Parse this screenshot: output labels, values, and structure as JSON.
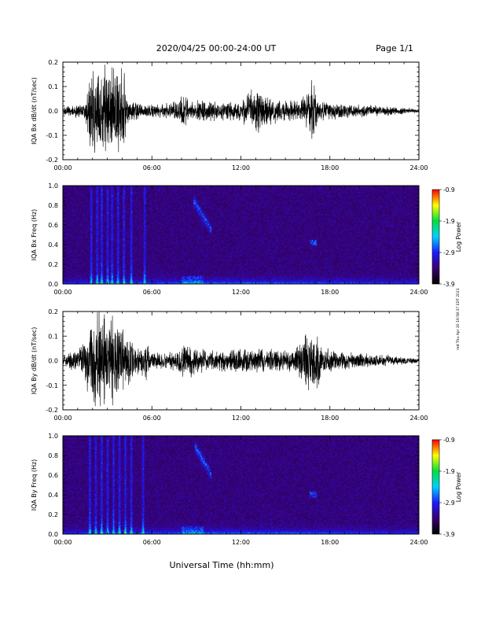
{
  "header": {
    "title": "2020/04/25  00:00-24:00 UT",
    "page": "Page 1/1"
  },
  "side_note": "red Thu Apr 30 19:58:37 EDT 2021",
  "xlabel": "Universal Time (hh:mm)",
  "colors": {
    "background": "#ffffff",
    "trace": "#000000",
    "spectrogram_floor": "#2a0a60",
    "colormap": [
      "#000000",
      "#3a0070",
      "#1a1aff",
      "#00d0ff",
      "#00e040",
      "#ffff00",
      "#ff0000"
    ]
  },
  "chart_data": [
    {
      "type": "line",
      "ylabel": "IQA Bx dB/dt (nT/sec)",
      "xlim": [
        0,
        24
      ],
      "ylim": [
        -0.2,
        0.2
      ],
      "x_ticks": [
        "00:00",
        "06:00",
        "12:00",
        "18:00",
        "24:00"
      ],
      "y_ticks": [
        "-0.2",
        "-0.1",
        "0.0",
        "0.1",
        "0.2"
      ],
      "y_tick_values": [
        -0.2,
        -0.1,
        0.0,
        0.1,
        0.2
      ],
      "grid": false,
      "envelope": {
        "hours": [
          0,
          1.5,
          1.9,
          2.6,
          3.3,
          4.1,
          4.4,
          5.2,
          6.0,
          7.5,
          8.3,
          8.6,
          9.5,
          10.5,
          12.0,
          13.0,
          13.5,
          14.5,
          16.0,
          16.9,
          17.0,
          17.2,
          18.0,
          20.0,
          22.0,
          24.0
        ],
        "amplitude": [
          0.02,
          0.04,
          0.2,
          0.22,
          0.2,
          0.2,
          0.06,
          0.04,
          0.03,
          0.04,
          0.08,
          0.04,
          0.05,
          0.04,
          0.05,
          0.12,
          0.07,
          0.06,
          0.04,
          0.16,
          0.13,
          0.05,
          0.04,
          0.03,
          0.02,
          0.01
        ]
      }
    },
    {
      "type": "heatmap",
      "ylabel": "IQA Bx Freq (Hz)",
      "xlim": [
        0,
        24
      ],
      "ylim": [
        0,
        1.0
      ],
      "x_ticks": [
        "00:00",
        "06:00",
        "12:00",
        "18:00",
        "24:00"
      ],
      "y_ticks": [
        "0.0",
        "0.2",
        "0.4",
        "0.6",
        "0.8",
        "1.0"
      ],
      "y_tick_values": [
        0,
        0.2,
        0.4,
        0.6,
        0.8,
        1.0
      ],
      "colorbar": {
        "label": "Log Power",
        "ticks": [
          "-0.9",
          "-1.9",
          "-2.9",
          "-3.9"
        ],
        "tick_values": [
          -0.9,
          -1.9,
          -2.9,
          -3.9
        ],
        "range": [
          -3.9,
          -0.9
        ]
      },
      "features": {
        "broadband_bursts_hours": [
          1.9,
          2.3,
          2.6,
          3.0,
          3.3,
          3.7,
          4.1,
          4.6,
          5.5
        ],
        "rising_tone": {
          "start_hour": 8.8,
          "end_hour": 10.0,
          "freq_start_hz": 0.85,
          "freq_end_hz": 0.55
        },
        "spot": {
          "hour": 16.9,
          "freq_hz": 0.42
        }
      }
    },
    {
      "type": "line",
      "ylabel": "IQA By dB/dt (nT/sec)",
      "xlim": [
        0,
        24
      ],
      "ylim": [
        -0.2,
        0.2
      ],
      "x_ticks": [
        "00:00",
        "06:00",
        "12:00",
        "18:00",
        "24:00"
      ],
      "y_ticks": [
        "-0.2",
        "-0.1",
        "0.0",
        "0.1",
        "0.2"
      ],
      "y_tick_values": [
        -0.2,
        -0.1,
        0.0,
        0.1,
        0.2
      ],
      "grid": false,
      "envelope": {
        "hours": [
          0,
          1.0,
          1.6,
          2.3,
          3.0,
          3.7,
          4.3,
          5.0,
          5.6,
          6.0,
          7.5,
          8.2,
          9.5,
          10.5,
          12.0,
          14.0,
          15.5,
          16.7,
          16.9,
          17.1,
          17.5,
          19.0,
          21.0,
          24.0
        ],
        "amplitude": [
          0.03,
          0.05,
          0.14,
          0.22,
          0.2,
          0.2,
          0.11,
          0.06,
          0.09,
          0.04,
          0.04,
          0.08,
          0.05,
          0.05,
          0.06,
          0.05,
          0.05,
          0.14,
          0.15,
          0.13,
          0.06,
          0.04,
          0.03,
          0.01
        ]
      }
    },
    {
      "type": "heatmap",
      "ylabel": "IQA By Freq (Hz)",
      "xlim": [
        0,
        24
      ],
      "ylim": [
        0,
        1.0
      ],
      "x_ticks": [
        "00:00",
        "06:00",
        "12:00",
        "18:00",
        "24:00"
      ],
      "y_ticks": [
        "0.0",
        "0.2",
        "0.4",
        "0.6",
        "0.8",
        "1.0"
      ],
      "y_tick_values": [
        0,
        0.2,
        0.4,
        0.6,
        0.8,
        1.0
      ],
      "colorbar": {
        "label": "Log Power",
        "ticks": [
          "-0.9",
          "-1.9",
          "-2.9",
          "-3.9"
        ],
        "tick_values": [
          -0.9,
          -1.9,
          -2.9,
          -3.9
        ],
        "range": [
          -3.9,
          -0.9
        ]
      },
      "features": {
        "broadband_bursts_hours": [
          1.8,
          2.2,
          2.6,
          3.0,
          3.4,
          3.8,
          4.2,
          4.6,
          5.4
        ],
        "rising_tone": {
          "start_hour": 8.9,
          "end_hour": 10.0,
          "freq_start_hz": 0.9,
          "freq_end_hz": 0.6
        },
        "spot": {
          "hour": 16.9,
          "freq_hz": 0.4
        }
      }
    }
  ]
}
